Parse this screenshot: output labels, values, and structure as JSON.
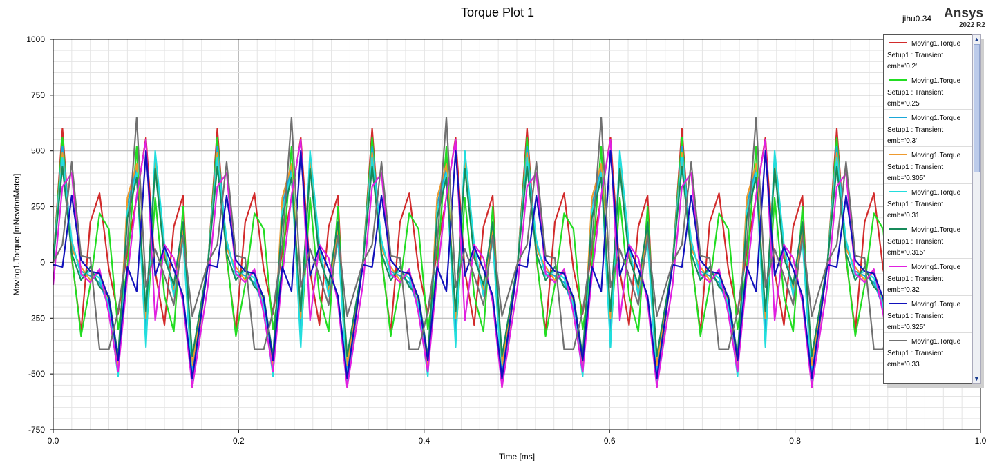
{
  "header": {
    "user": "jihu0.34",
    "brand": "Ansys",
    "version": "2022 R2"
  },
  "chart_data": {
    "type": "line",
    "title": "Torque Plot 1",
    "xlabel": "Time [ms]",
    "ylabel": "Moving1.Torque [mNewtonMeter]",
    "xlim": [
      0,
      1.0
    ],
    "ylim": [
      -750,
      1000
    ],
    "xticks": [
      "0.0",
      "0.2",
      "0.4",
      "0.6",
      "0.8",
      "1.0"
    ],
    "xtick_values": [
      0,
      0.2,
      0.4,
      0.6,
      0.8,
      1.0
    ],
    "yticks": [
      "1000",
      "750",
      "500",
      "250",
      "0",
      "-250",
      "-500",
      "-750"
    ],
    "ytick_values": [
      1000,
      750,
      500,
      250,
      0,
      -250,
      -500,
      -750
    ],
    "grid": true,
    "legend_position": "right",
    "period_ms": 0.167,
    "series": [
      {
        "name": "Moving1.Torque",
        "setup": "Setup1 : Transient",
        "param": "emb='0.2'",
        "color": "#d22b2b",
        "x": [
          0,
          0.01,
          0.02,
          0.03,
          0.04,
          0.05,
          0.06,
          0.07,
          0.08,
          0.09,
          0.1,
          0.11,
          0.12,
          0.13,
          0.14,
          0.15,
          0.16
        ],
        "y": [
          0,
          600,
          20,
          -310,
          180,
          310,
          -30,
          -230,
          50,
          290,
          560,
          -40,
          -280,
          160,
          300,
          -560,
          -560
        ]
      },
      {
        "name": "Moving1.Torque",
        "setup": "Setup1 : Transient",
        "param": "emb='0.25'",
        "color": "#22dd22",
        "x": [
          0,
          0.01,
          0.02,
          0.03,
          0.04,
          0.05,
          0.06,
          0.07,
          0.08,
          0.09,
          0.1,
          0.11,
          0.12,
          0.13,
          0.14,
          0.15,
          0.16
        ],
        "y": [
          0,
          560,
          30,
          -330,
          -100,
          220,
          150,
          -300,
          -20,
          520,
          -340,
          290,
          -150,
          -310,
          250,
          -520,
          -520
        ]
      },
      {
        "name": "Moving1.Torque",
        "setup": "Setup1 : Transient",
        "param": "emb='0.3'",
        "color": "#1aa7d8",
        "x": [
          0,
          0.01,
          0.02,
          0.03,
          0.04,
          0.05,
          0.06,
          0.07,
          0.08,
          0.09,
          0.1,
          0.11,
          0.12,
          0.13,
          0.14,
          0.15,
          0.16
        ],
        "y": [
          0,
          520,
          80,
          -40,
          -60,
          -90,
          -200,
          -480,
          260,
          420,
          -300,
          480,
          60,
          -140,
          120,
          -500,
          -500
        ]
      },
      {
        "name": "Moving1.Torque",
        "setup": "Setup1 : Transient",
        "param": "emb='0.305'",
        "color": "#ee9a2e",
        "x": [
          0,
          0.01,
          0.02,
          0.03,
          0.04,
          0.05,
          0.06,
          0.07,
          0.08,
          0.09,
          0.1,
          0.11,
          0.12,
          0.13,
          0.14,
          0.15,
          0.16
        ],
        "y": [
          0,
          490,
          60,
          -20,
          -80,
          -40,
          -170,
          -470,
          290,
          440,
          -250,
          460,
          40,
          -120,
          150,
          -460,
          -460
        ]
      },
      {
        "name": "Moving1.Torque",
        "setup": "Setup1 : Transient",
        "param": "emb='0.31'",
        "color": "#22dddd",
        "x": [
          0,
          0.01,
          0.02,
          0.03,
          0.04,
          0.05,
          0.06,
          0.07,
          0.08,
          0.09,
          0.1,
          0.11,
          0.12,
          0.13,
          0.14,
          0.15,
          0.16
        ],
        "y": [
          0,
          470,
          100,
          -60,
          -40,
          -70,
          -190,
          -510,
          230,
          400,
          -380,
          500,
          80,
          -150,
          100,
          -540,
          -540
        ]
      },
      {
        "name": "Moving1.Torque",
        "setup": "Setup1 : Transient",
        "param": "emb='0.315'",
        "color": "#168a5a",
        "x": [
          0,
          0.01,
          0.02,
          0.03,
          0.04,
          0.05,
          0.06,
          0.07,
          0.08,
          0.09,
          0.1,
          0.11,
          0.12,
          0.13,
          0.14,
          0.15,
          0.16
        ],
        "y": [
          0,
          430,
          40,
          -80,
          -20,
          -110,
          -150,
          -420,
          200,
          380,
          -220,
          420,
          20,
          -100,
          180,
          -420,
          -420
        ]
      },
      {
        "name": "Moving1.Torque",
        "setup": "Setup1 : Transient",
        "param": "emb='0.32'",
        "color": "#e020e0",
        "x": [
          0,
          0.01,
          0.02,
          0.03,
          0.04,
          0.05,
          0.06,
          0.07,
          0.08,
          0.09,
          0.1,
          0.11,
          0.12,
          0.13,
          0.14,
          0.15,
          0.16
        ],
        "y": [
          -100,
          340,
          400,
          -50,
          -90,
          -30,
          -230,
          -490,
          -60,
          300,
          550,
          -260,
          80,
          20,
          -180,
          -560,
          -560
        ]
      },
      {
        "name": "Moving1.Torque",
        "setup": "Setup1 : Transient",
        "param": "emb='0.325'",
        "color": "#1111bb",
        "x": [
          0,
          0.01,
          0.02,
          0.03,
          0.04,
          0.05,
          0.06,
          0.07,
          0.08,
          0.09,
          0.1,
          0.11,
          0.12,
          0.13,
          0.14,
          0.15,
          0.16
        ],
        "y": [
          -10,
          -20,
          300,
          10,
          -40,
          -50,
          -160,
          -440,
          -20,
          -130,
          500,
          -60,
          70,
          -30,
          -150,
          -520,
          -520
        ]
      },
      {
        "name": "Moving1.Torque",
        "setup": "Setup1 : Transient",
        "param": "emb='0.33'",
        "color": "#707070",
        "x": [
          0,
          0.01,
          0.02,
          0.03,
          0.04,
          0.05,
          0.06,
          0.07,
          0.08,
          0.09,
          0.1,
          0.11,
          0.12,
          0.13,
          0.14,
          0.15,
          0.16
        ],
        "y": [
          0,
          80,
          450,
          30,
          20,
          -390,
          -390,
          -220,
          80,
          650,
          -110,
          60,
          -60,
          -190,
          120,
          -240,
          -560
        ]
      }
    ]
  }
}
